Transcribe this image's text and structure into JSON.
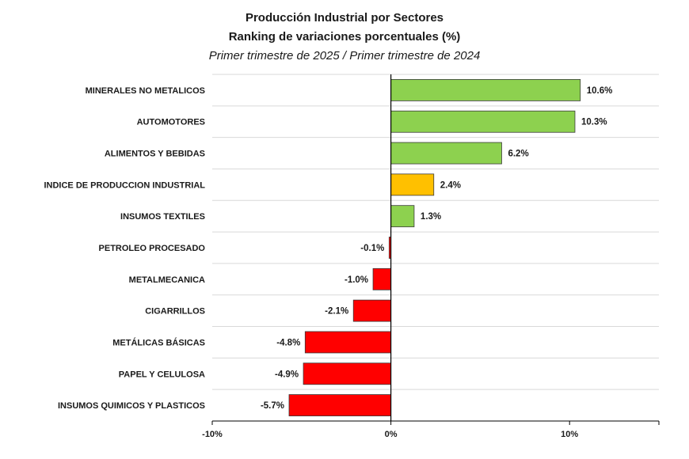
{
  "chart_data": {
    "type": "bar",
    "orientation": "horizontal",
    "title": "Producción Industrial por Sectores",
    "subtitle": "Ranking de variaciones porcentuales (%)",
    "period": "Primer trimestre de 2025 / Primer trimestre de 2024",
    "categories": [
      "MINERALES NO METALICOS",
      "AUTOMOTORES",
      "ALIMENTOS Y BEBIDAS",
      "INDICE DE PRODUCCION INDUSTRIAL",
      "INSUMOS TEXTILES",
      "PETROLEO PROCESADO",
      "METALMECANICA",
      "CIGARRILLOS",
      "METÁLICAS BÁSICAS",
      "PAPEL Y CELULOSA",
      "INSUMOS QUIMICOS Y PLASTICOS"
    ],
    "values": [
      10.6,
      10.3,
      6.2,
      2.4,
      1.3,
      -0.1,
      -1.0,
      -2.1,
      -4.8,
      -4.9,
      -5.7
    ],
    "value_labels": [
      "10.6%",
      "10.3%",
      "6.2%",
      "2.4%",
      "1.3%",
      "-0.1%",
      "-1.0%",
      "-2.1%",
      "-4.8%",
      "-4.9%",
      "-5.7%"
    ],
    "highlight_category": "INDICE DE PRODUCCION INDUSTRIAL",
    "xlim": [
      -10,
      15
    ],
    "xticks": [
      -10,
      0,
      10
    ],
    "xtick_labels": [
      "-10%",
      "0%",
      "10%"
    ],
    "grid": "horizontal",
    "legend": "none",
    "xlabel": "",
    "ylabel": ""
  },
  "colors": {
    "positive": "#8DD14F",
    "highlight": "#FFC000",
    "negative": "#FF0000",
    "bar_border": "#3a3a3a",
    "gridline": "#d9d9d9",
    "axis": "#000000"
  }
}
